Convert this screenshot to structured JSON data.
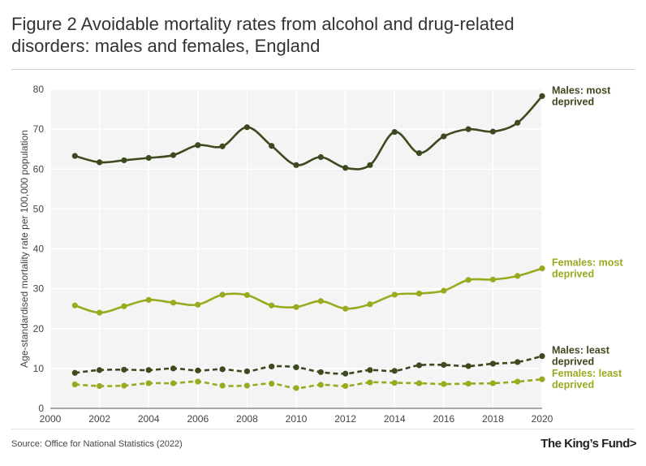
{
  "title": "Figure 2 Avoidable mortality rates from alcohol and drug-related disorders: males and females, England",
  "source": "Source: Office for National Statistics (2022)",
  "logo": "The King’s Fund>",
  "colors": {
    "males": "#3d4a1f",
    "females": "#9aaa1e",
    "grid": "#ffffff",
    "plot_bg": "#f4f4f4"
  },
  "chart_data": {
    "type": "line",
    "title": "Figure 2 Avoidable mortality rates from alcohol and drug-related disorders: males and females, England",
    "xlabel": "",
    "ylabel": "Age-standardised mortality rate per 100,000 population",
    "xlim": [
      2000,
      2020
    ],
    "ylim": [
      0,
      80
    ],
    "xticks": [
      "2000",
      "2002",
      "2004",
      "2006",
      "2008",
      "2010",
      "2012",
      "2014",
      "2016",
      "2018",
      "2020"
    ],
    "yticks": [
      "0",
      "10",
      "20",
      "30",
      "40",
      "50",
      "60",
      "70",
      "80"
    ],
    "x": [
      2001,
      2002,
      2003,
      2004,
      2005,
      2006,
      2007,
      2008,
      2009,
      2010,
      2011,
      2012,
      2013,
      2014,
      2015,
      2016,
      2017,
      2018,
      2019,
      2020
    ],
    "series": [
      {
        "key": "males-most",
        "name": "Males: most deprived",
        "label_lines": [
          "Males: most",
          "deprived"
        ],
        "color": "#3d4a1f",
        "dashed": false,
        "values": [
          63.3,
          61.7,
          62.2,
          62.8,
          63.5,
          66.0,
          65.7,
          70.5,
          65.8,
          61.0,
          63.0,
          60.3,
          61.0,
          69.3,
          64.0,
          68.2,
          70.0,
          69.4,
          71.6,
          78.3
        ]
      },
      {
        "key": "females-most",
        "name": "Females: most deprived",
        "label_lines": [
          "Females: most",
          "deprived"
        ],
        "color": "#9aaa1e",
        "dashed": false,
        "values": [
          25.8,
          24.0,
          25.6,
          27.2,
          26.5,
          26.0,
          28.5,
          28.4,
          25.8,
          25.4,
          26.9,
          25.0,
          26.1,
          28.5,
          28.8,
          29.5,
          32.2,
          32.3,
          33.2,
          35.1
        ]
      },
      {
        "key": "males-least",
        "name": "Males: least deprived",
        "label_lines": [
          "Males: least",
          "deprived"
        ],
        "color": "#3d4a1f",
        "dashed": true,
        "values": [
          8.9,
          9.6,
          9.7,
          9.6,
          10.0,
          9.5,
          9.8,
          9.3,
          10.5,
          10.3,
          9.1,
          8.7,
          9.6,
          9.4,
          10.8,
          10.9,
          10.6,
          11.2,
          11.6,
          13.1
        ]
      },
      {
        "key": "females-least",
        "name": "Females: least deprived",
        "label_lines": [
          "Females: least",
          "deprived"
        ],
        "color": "#9aaa1e",
        "dashed": true,
        "values": [
          6.0,
          5.6,
          5.7,
          6.3,
          6.3,
          6.7,
          5.7,
          5.7,
          6.2,
          5.1,
          5.9,
          5.6,
          6.5,
          6.4,
          6.3,
          6.1,
          6.2,
          6.3,
          6.7,
          7.3
        ]
      }
    ]
  }
}
